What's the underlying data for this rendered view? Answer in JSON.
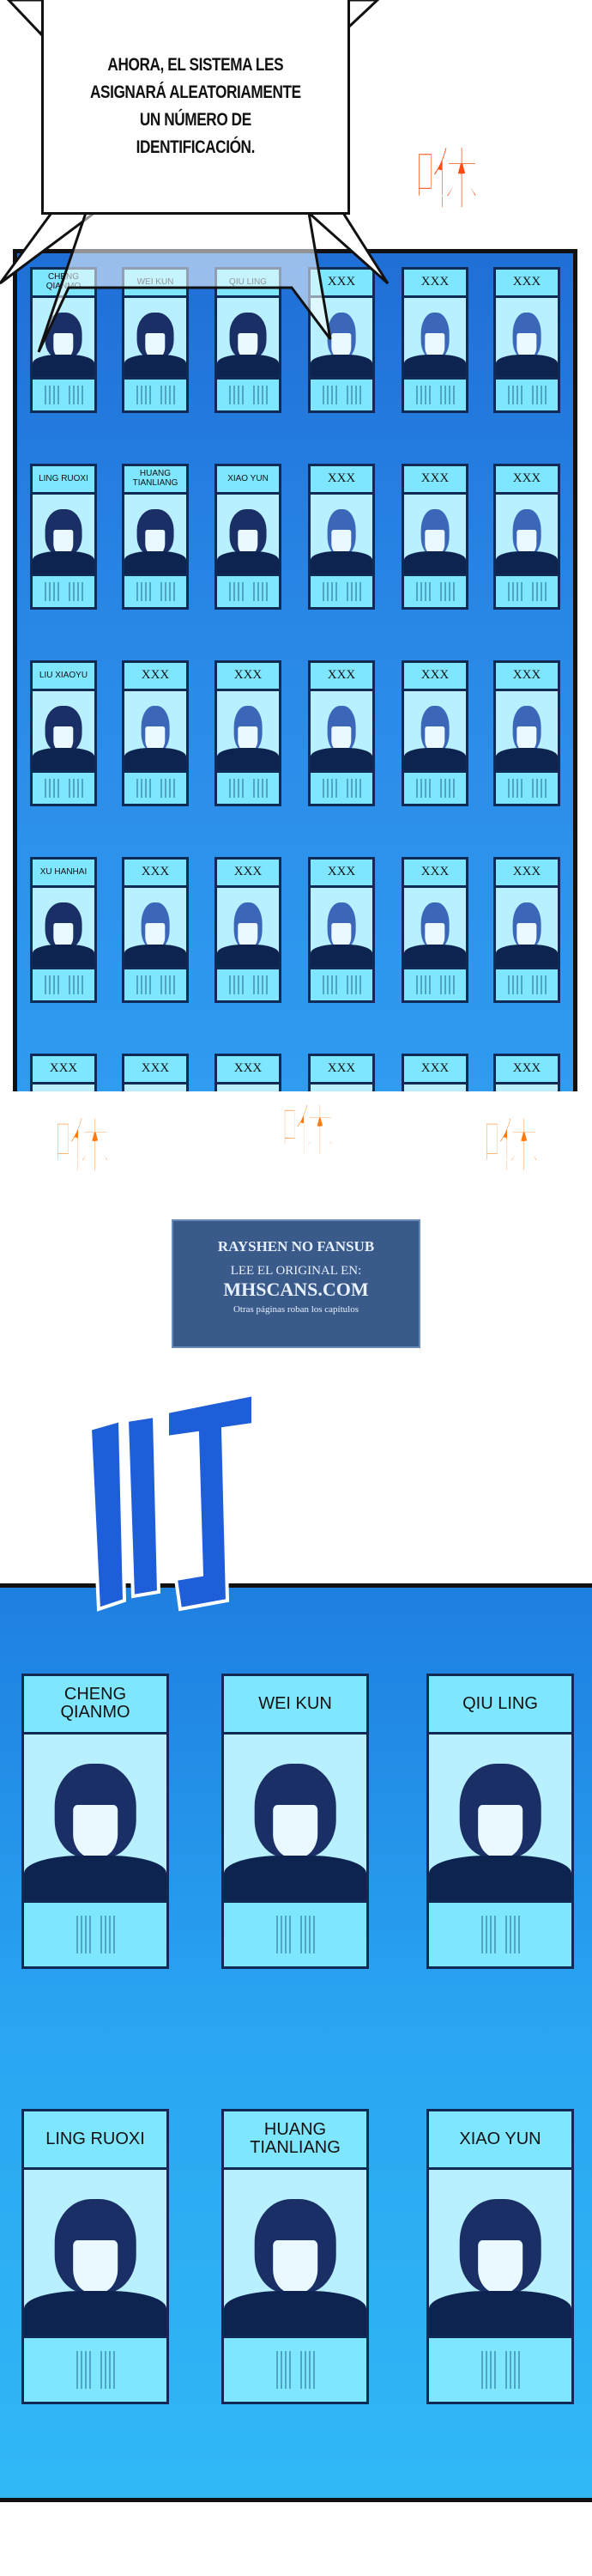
{
  "speech_bubble": {
    "text": "AHORA, EL SISTEMA LES\nASIGNARÁ ALEATORIAMENTE\nUN NÚMERO DE\nIDENTIFICACIÓN."
  },
  "watermark": {
    "line1": "RAYSHEN NO FANSUB",
    "line2": "LEE EL ORIGINAL EN:",
    "line3": "MHSCANS.COM",
    "line4": "Otras páginas roban los capítulos"
  },
  "sound_effects": {
    "swoosh": "咻",
    "ding": "叮"
  },
  "top_panel": {
    "rows": [
      [
        "CHENG\nQIANMO",
        "WEI KUN",
        "QIU LING",
        "XXX",
        "XXX",
        "XXX"
      ],
      [
        "LING RUOXI",
        "HUANG\nTIANLIANG",
        "XIAO YUN",
        "XXX",
        "XXX",
        "XXX"
      ],
      [
        "LIU XIAOYU",
        "XXX",
        "XXX",
        "XXX",
        "XXX",
        "XXX"
      ],
      [
        "XU HANHAI",
        "XXX",
        "XXX",
        "XXX",
        "XXX",
        "XXX"
      ],
      [
        "XXX",
        "XXX",
        "XXX",
        "XXX",
        "XXX",
        "XXX"
      ]
    ]
  },
  "bottom_panel": {
    "rows": [
      [
        "CHENG\nQIANMO",
        "WEI KUN",
        "QIU LING"
      ],
      [
        "LING RUOXI",
        "HUANG\nTIANLIANG",
        "XIAO YUN"
      ]
    ]
  },
  "colors": {
    "card": "#7fe6ff",
    "panel": "#2a8ae8",
    "sfx_orange": "#ff7a10",
    "sfx_blue": "#1e5ed8"
  }
}
